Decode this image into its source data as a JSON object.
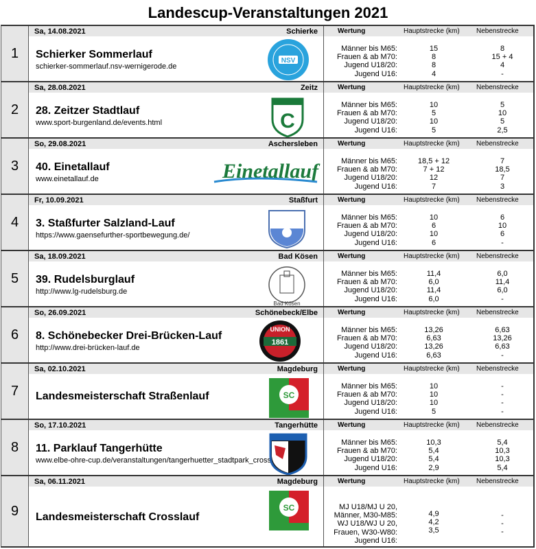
{
  "title": "Landescup-Veranstaltungen 2021",
  "headers": {
    "wertung": "Wertung",
    "haupt": "Hauptstrecke (km)",
    "neben": "Nebenstrecke (km)"
  },
  "events": [
    {
      "num": "1",
      "date": "Sa, 14.08.2021",
      "location": "Schierke",
      "name": "Schierker Sommerlauf",
      "url": "schierker-sommerlauf.nsv-wernigerode.de",
      "logo": "nsv-wernigerode-logo",
      "labels": [
        "Männer bis M65:",
        "Frauen & ab M70:",
        "Jugend U18/20:",
        "Jugend U16:"
      ],
      "haupt": [
        "15",
        "8",
        "8",
        "4"
      ],
      "neben": [
        "8",
        "15 + 4",
        "4",
        "-"
      ]
    },
    {
      "num": "2",
      "date": "Sa, 28.08.2021",
      "location": "Zeitz",
      "name": "28. Zeitzer Stadtlauf",
      "url": "www.sport-burgenland.de/events.html",
      "logo": "sg-chemie-zeitz-logo",
      "labels": [
        "Männer bis M65:",
        "Frauen & ab M70:",
        "Jugend U18/20:",
        "Jugend U16:"
      ],
      "haupt": [
        "10",
        "5",
        "10",
        "5"
      ],
      "neben": [
        "5",
        "10",
        "5",
        "2,5"
      ]
    },
    {
      "num": "3",
      "date": "So, 29.08.2021",
      "location": "Aschersleben",
      "name": "40. Einetallauf",
      "url": "www.einetallauf.de",
      "logo": "einetallauf-logo",
      "labels": [
        "Männer bis M65:",
        "Frauen & ab M70:",
        "Jugend U18/20:",
        "Jugend U16:"
      ],
      "haupt": [
        "18,5 + 12",
        "7 + 12",
        "12",
        "7"
      ],
      "neben": [
        "7",
        "18,5",
        "7",
        "3"
      ]
    },
    {
      "num": "4",
      "date": "Fr, 10.09.2021",
      "location": "Staßfurt",
      "name": "3. Staßfurter Salzland-Lauf",
      "url": "https://www.gaensefurther-sportbewegung.de/",
      "logo": "gaensefurther-sportbewegung-logo",
      "labels": [
        "Männer bis M65:",
        "Frauen & ab M70:",
        "Jugend U18/20:",
        "Jugend U16:"
      ],
      "haupt": [
        "10",
        "6",
        "10",
        "6"
      ],
      "neben": [
        "6",
        "10",
        "6",
        "-"
      ]
    },
    {
      "num": "5",
      "date": "Sa, 18.09.2021",
      "location": "Bad Kösen",
      "name": "39. Rudelsburglauf",
      "url": "http://www.lg-rudelsburg.de",
      "logo": "lg-rudelsburg-logo",
      "labels": [
        "Männer bis M65:",
        "Frauen & ab M70:",
        "Jugend U18/20:",
        "Jugend U16:"
      ],
      "haupt": [
        "11,4",
        "6,0",
        "11,4",
        "6,0"
      ],
      "neben": [
        "6,0",
        "11,4",
        "6,0",
        "-"
      ]
    },
    {
      "num": "6",
      "date": "So, 26.09.2021",
      "location": "Schönebeck/Elbe",
      "name": "8. Schönebecker Drei-Brücken-Lauf",
      "url": "http://www.drei-brücken-lauf.de",
      "logo": "union-1861-schoenebeck-logo",
      "labels": [
        "Männer bis M65:",
        "Frauen & ab M70:",
        "Jugend U18/20:",
        "Jugend U16:"
      ],
      "haupt": [
        "13,26",
        "6,63",
        "13,26",
        "6,63"
      ],
      "neben": [
        "6,63",
        "13,26",
        "6,63",
        "-"
      ]
    },
    {
      "num": "7",
      "date": "Sa, 02.10.2021",
      "location": "Magdeburg",
      "name": "Landesmeisterschaft Straßenlauf",
      "url": "",
      "logo": "sc-magdeburg-leichtathletik-logo",
      "labels": [
        "Männer bis M65:",
        "Frauen & ab M70:",
        "Jugend U18/20:",
        "Jugend U16:"
      ],
      "haupt": [
        "10",
        "10",
        "10",
        "5"
      ],
      "neben": [
        "-",
        "-",
        "-",
        "-"
      ]
    },
    {
      "num": "8",
      "date": "So, 17.10.2021",
      "location": "Tangerhütte",
      "name": "11. Parklauf Tangerhütte",
      "url": "www.elbe-ohre-cup.de/veranstaltungen/tangerhuetter_stadtpark_cross",
      "logo": "sv-germania-tangerhuette-logo",
      "labels": [
        "Männer bis M65:",
        "Frauen & ab M70:",
        "Jugend U18/20:",
        "Jugend U16:"
      ],
      "haupt": [
        "10,3",
        "5,4",
        "5,4",
        "2,9"
      ],
      "neben": [
        "5,4",
        "10,3",
        "10,3",
        "5,4"
      ]
    },
    {
      "num": "9",
      "date": "Sa, 06.11.2021",
      "location": "Magdeburg",
      "name": "Landesmeisterschaft Crosslauf",
      "url": "",
      "logo": "sc-magdeburg-leichtathletik-logo",
      "labels": [
        "MJ U18/MJ U 20,",
        "Männer, M30-M85:",
        "WJ U18/WJ U 20,",
        "Frauen, W30-W80:",
        "Jugend U16:"
      ],
      "haupt": [
        "4,9",
        "4,2",
        "3,5"
      ],
      "neben": [
        "-",
        "-",
        "-"
      ]
    }
  ],
  "colors": {
    "header_gray": "#e6e6e6",
    "border": "#333333"
  }
}
